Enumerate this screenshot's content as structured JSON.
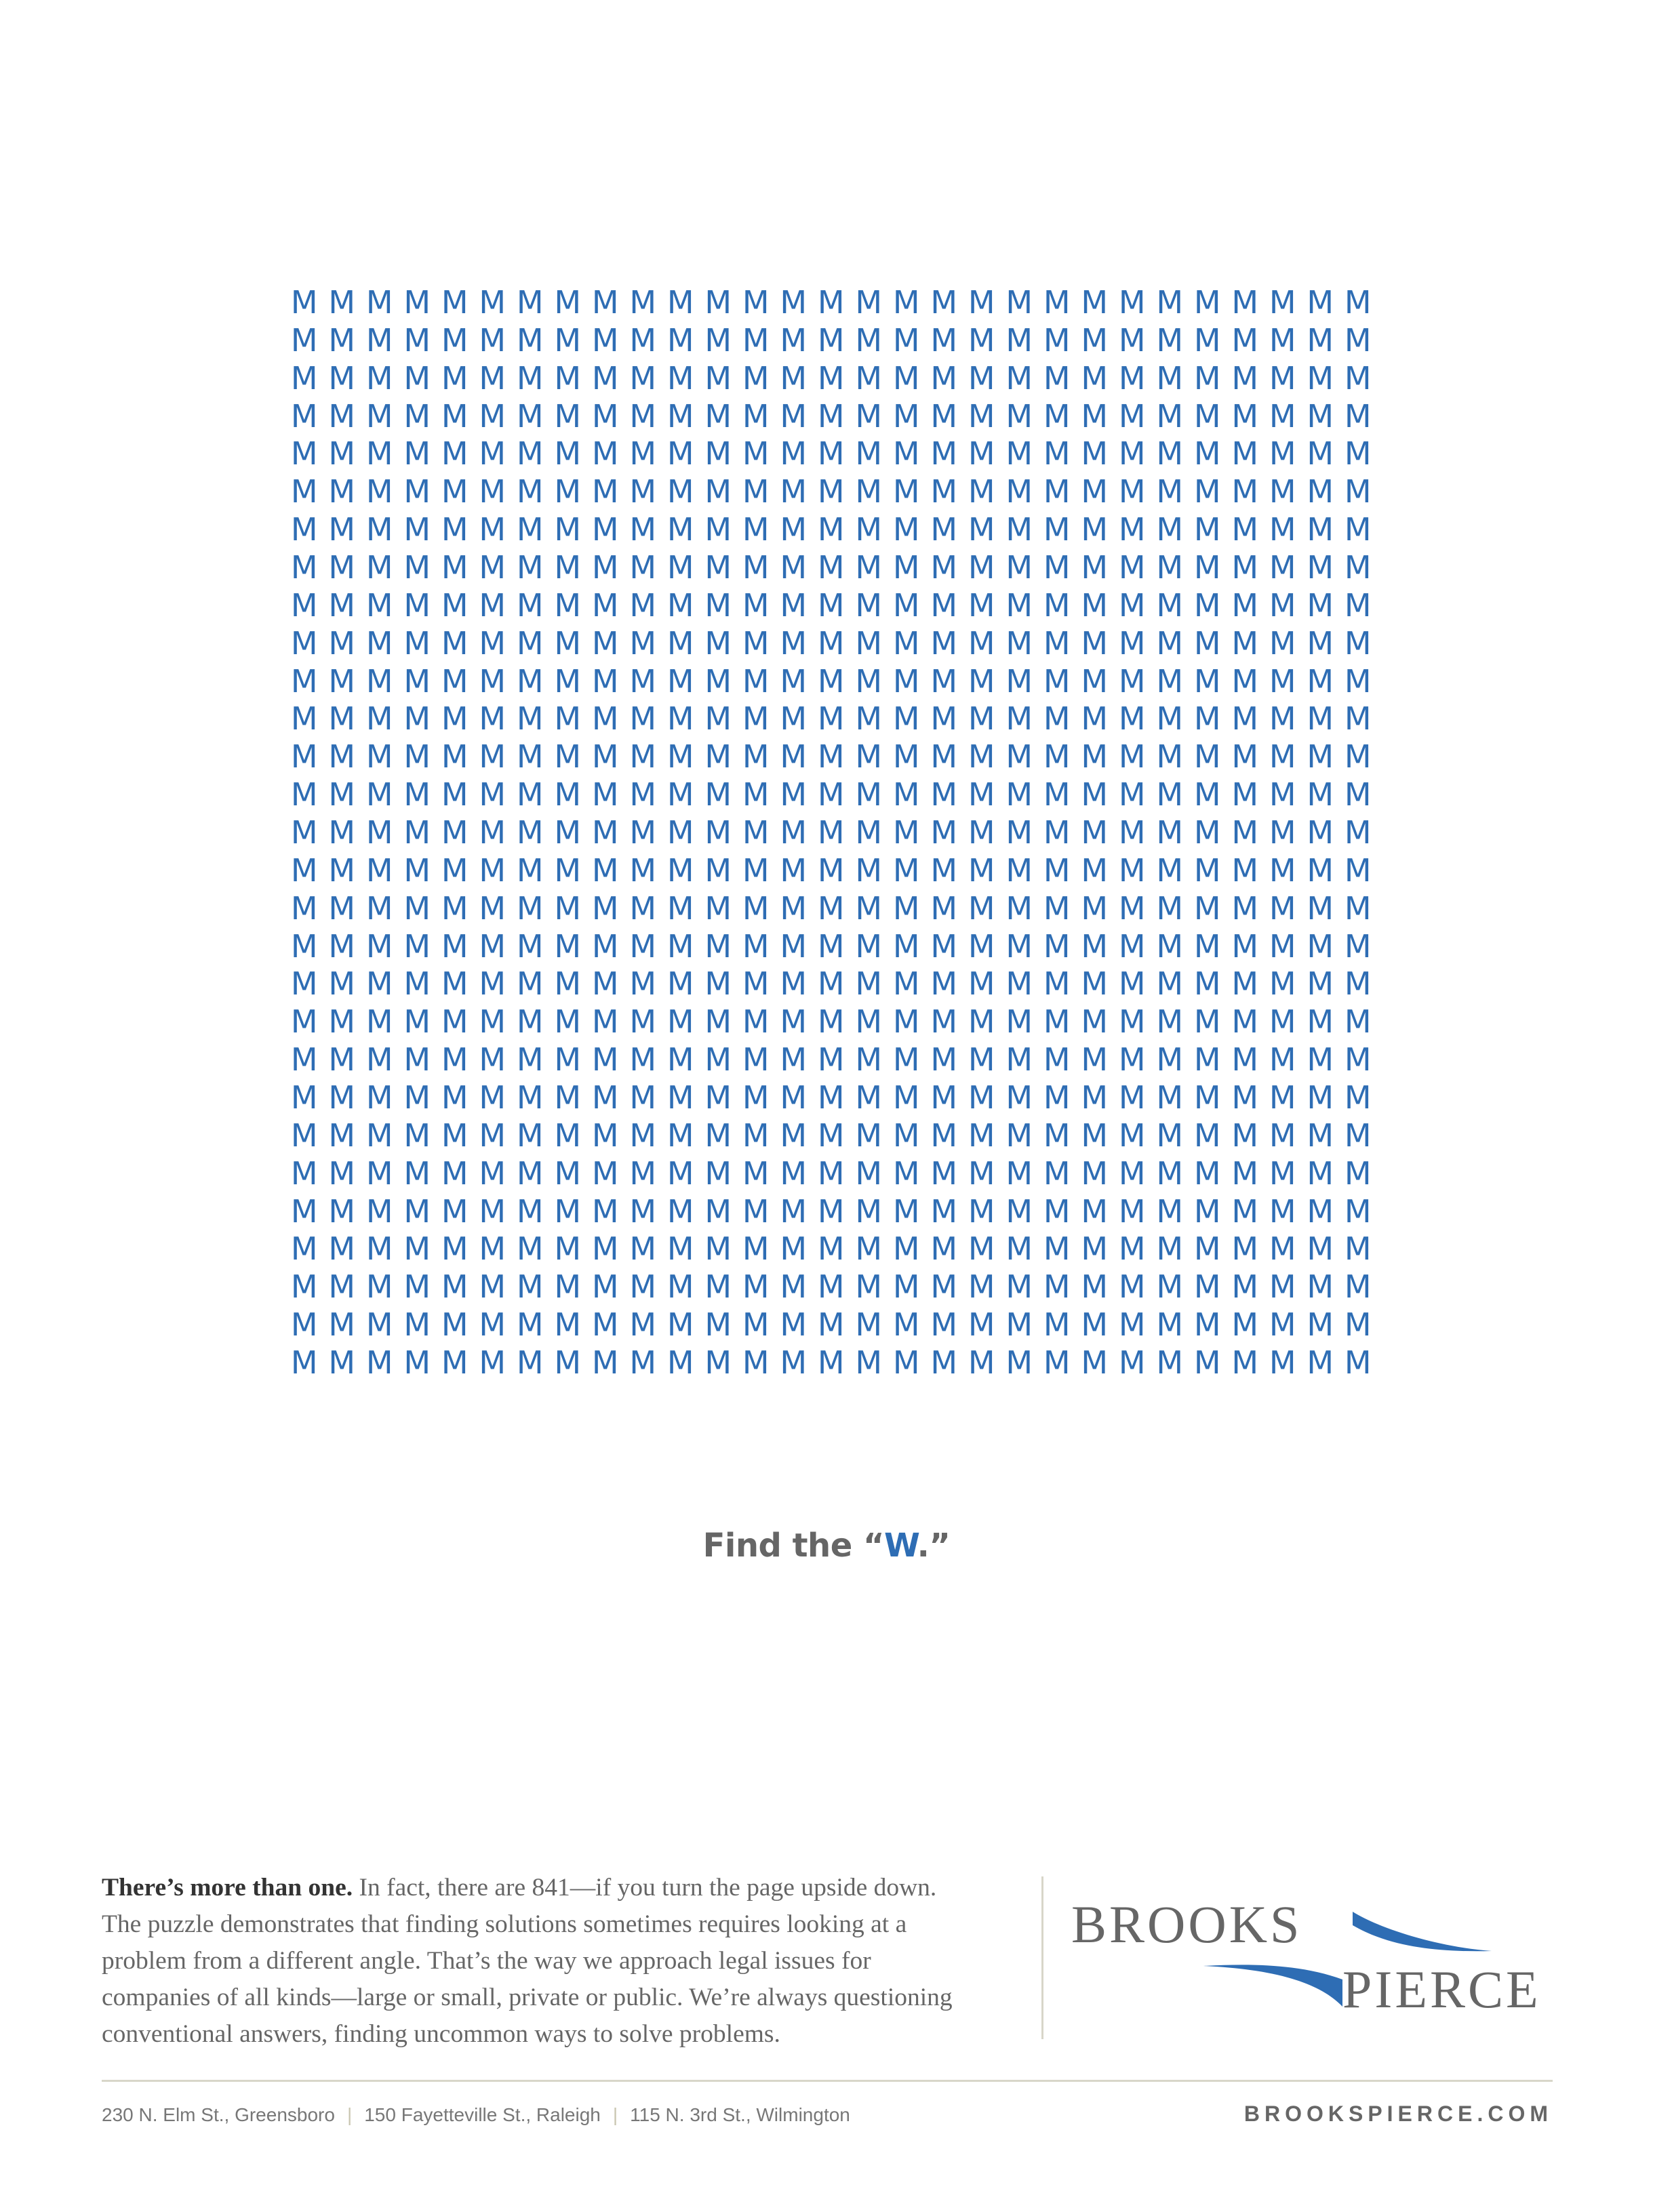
{
  "puzzle": {
    "letter": "M",
    "rows": 29,
    "cols": 29,
    "color": "#2e6db4"
  },
  "headline": {
    "prefix": "Find the “",
    "accent": "W",
    "suffix": ".”"
  },
  "body": {
    "lead": "There’s more than one.",
    "lines": [
      " In fact, there are 841—if you turn the page upside down.",
      "The puzzle demonstrates that finding solutions sometimes requires looking at a",
      "problem from a different angle. That’s the way we approach legal issues for",
      "companies of all kinds—large or small, private or public. We’re always questioning",
      "conventional answers, finding uncommon ways to solve problems."
    ]
  },
  "logo": {
    "line1": "BROOKS",
    "line2": "PIERCE",
    "accent_color": "#2e6db4"
  },
  "footer": {
    "addresses": [
      "230 N. Elm St., Greensboro",
      "150 Fayetteville St., Raleigh",
      "115 N. 3rd St., Wilmington"
    ],
    "separator": "|",
    "url": "BROOKSPIERCE.COM"
  }
}
